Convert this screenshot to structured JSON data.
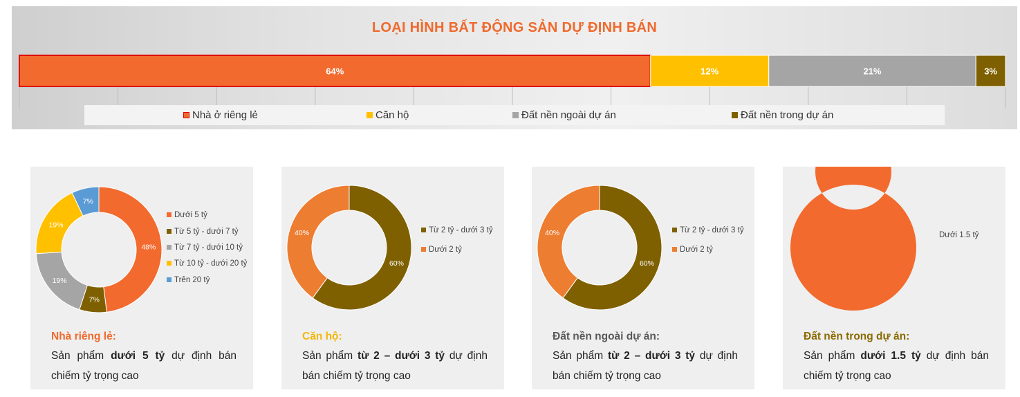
{
  "main_chart": {
    "title": "LOẠI HÌNH BẤT ĐỘNG SẢN DỰ ĐỊNH BÁN"
  },
  "chart_data": [
    {
      "type": "bar",
      "orientation": "horizontal-stacked-100",
      "title": "LOẠI HÌNH BẤT ĐỘNG SẢN DỰ ĐỊNH BÁN",
      "series": [
        {
          "name": "Nhà ở riêng lẻ",
          "values": [
            64
          ],
          "label": "64%",
          "color": "#f26a2e"
        },
        {
          "name": "Căn hộ",
          "values": [
            12
          ],
          "label": "12%",
          "color": "#ffc000"
        },
        {
          "name": "Đất nền ngoài dự án",
          "values": [
            21
          ],
          "label": "21%",
          "color": "#a5a5a5"
        },
        {
          "name": "Đất nền trong dự án",
          "values": [
            3
          ],
          "label": "3%",
          "color": "#7f6000"
        }
      ],
      "xlim": [
        0,
        100
      ],
      "legend_position": "bottom"
    },
    {
      "type": "pie",
      "variant": "donut",
      "slices": [
        {
          "name": "Dưới 5 tỷ",
          "value": 48,
          "label": "48%",
          "color": "#f26a2e"
        },
        {
          "name": "Từ 5 tỷ -  dưới 7 tỷ",
          "value": 7,
          "label": "7%",
          "color": "#7f6000"
        },
        {
          "name": "Từ 7 tỷ  - dưới 10 tỷ",
          "value": 19,
          "label": "19%",
          "color": "#a5a5a5"
        },
        {
          "name": "Từ 10 tỷ - dưới 20 tỷ",
          "value": 19,
          "label": "19%",
          "color": "#ffc000"
        },
        {
          "name": "Trên 20 tỷ",
          "value": 7,
          "label": "7%",
          "color": "#5b9bd5"
        }
      ],
      "legend_position": "right"
    },
    {
      "type": "pie",
      "variant": "donut",
      "slices": [
        {
          "name": "Từ 2 tỷ -  dưới 3 tỷ",
          "value": 60,
          "label": "60%",
          "color": "#7f6000"
        },
        {
          "name": "Dưới 2 tỷ",
          "value": 40,
          "label": "40%",
          "color": "#ed7d31"
        }
      ],
      "legend_position": "right"
    },
    {
      "type": "pie",
      "variant": "donut",
      "slices": [
        {
          "name": "Từ 2 tỷ -  dưới 3 tỷ",
          "value": 60,
          "label": "60%",
          "color": "#7f6000"
        },
        {
          "name": "Dưới 2 tỷ",
          "value": 40,
          "label": "40%",
          "color": "#ed7d31"
        }
      ],
      "legend_position": "right"
    },
    {
      "type": "pie",
      "variant": "donut",
      "slices": [
        {
          "name": "Dưới 1.5 tỷ",
          "value": 100,
          "label": "",
          "color": "#f26a2e"
        }
      ],
      "legend_position": "right"
    }
  ],
  "cards": [
    {
      "heading": "Nhà riêng lẻ:",
      "heading_color": "#ef6a2d",
      "desc_prefix": "Sản phẩm ",
      "desc_bold": "dưới 5 tỷ",
      "desc_suffix": " dự định bán chiếm tỷ trọng cao"
    },
    {
      "heading": "Căn hộ:",
      "heading_color": "#f2b705",
      "desc_prefix": "Sản phẩm ",
      "desc_bold": "từ 2 – dưới 3 tỷ",
      "desc_suffix": " dự định bán chiếm tỷ trọng cao"
    },
    {
      "heading": "Đất nền ngoài dự án:",
      "heading_color": "#595959",
      "desc_prefix": "Sản phẩm ",
      "desc_bold": "từ 2 – dưới 3 tỷ",
      "desc_suffix": " dự định bán chiếm tỷ trọng cao"
    },
    {
      "heading": "Đất nền trong dự án:",
      "heading_color": "#8a6a00",
      "desc_prefix": "Sản phẩm ",
      "desc_bold": "dưới 1.5 tỷ",
      "desc_suffix": " dự định bán chiếm tỷ trọng cao"
    }
  ]
}
